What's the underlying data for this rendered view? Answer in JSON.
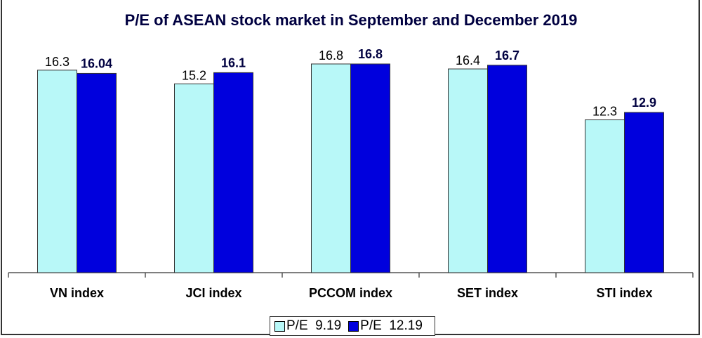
{
  "chart_data": {
    "type": "bar",
    "title": "P/E of ASEAN stock market in September and December 2019",
    "categories": [
      "VN index",
      "JCI index",
      "PCCOM index",
      "SET index",
      "STI index"
    ],
    "series": [
      {
        "name": "P/E  9.19",
        "values": [
          16.3,
          15.2,
          16.8,
          16.4,
          12.3
        ],
        "labels": [
          "16.3",
          "15.2",
          "16.8",
          "16.4",
          "12.3"
        ],
        "color": "#b8f8f8"
      },
      {
        "name": "P/E  12.19",
        "values": [
          16.04,
          16.1,
          16.8,
          16.7,
          12.9
        ],
        "labels": [
          "16.04",
          "16.1",
          "16.8",
          "16.7",
          "12.9"
        ],
        "color": "#0000dd"
      }
    ],
    "xlabel": "",
    "ylabel": "",
    "ylim": [
      0,
      16.8
    ],
    "grid": false,
    "legend": "bottom"
  }
}
